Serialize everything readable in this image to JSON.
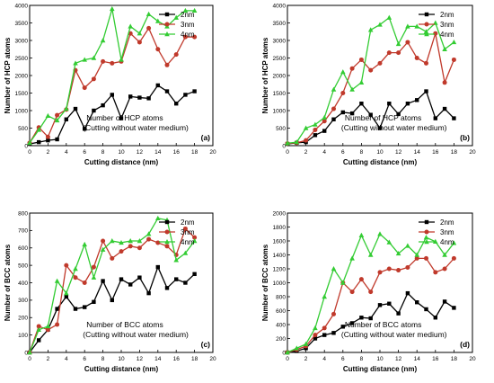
{
  "figure": {
    "legend_symbols": {
      "2nm": "square",
      "3nm": "circle",
      "4nm": "triangle"
    }
  },
  "chart_data": [
    {
      "type": "line",
      "panel_label": "(a)",
      "annotation_line1": "Number of HCP atoms",
      "annotation_line2": "(Cutting without water medium)",
      "xlabel": "Cutting distance (nm)",
      "ylabel": "Number of HCP atoms",
      "xlim": [
        0,
        20
      ],
      "ylim": [
        0,
        4000
      ],
      "xticks": [
        0,
        2,
        4,
        6,
        8,
        10,
        12,
        14,
        16,
        18,
        20
      ],
      "yticks": [
        0,
        500,
        1000,
        1500,
        2000,
        2500,
        3000,
        3500,
        4000
      ],
      "legend_position": "top-right",
      "grid": false,
      "series": [
        {
          "name": "2nm",
          "color": "#000000",
          "x": [
            0,
            1,
            2,
            3,
            4,
            5,
            6,
            7,
            8,
            9,
            10,
            11,
            12,
            13,
            14,
            15,
            16,
            17,
            18
          ],
          "y": [
            50,
            100,
            150,
            180,
            750,
            1050,
            480,
            1000,
            1150,
            1450,
            780,
            1400,
            1370,
            1350,
            1720,
            1550,
            1200,
            1450,
            1550
          ]
        },
        {
          "name": "3nm",
          "color": "#c0392b",
          "x": [
            0,
            1,
            2,
            3,
            4,
            5,
            6,
            7,
            8,
            9,
            10,
            11,
            12,
            13,
            14,
            15,
            16,
            17,
            18
          ],
          "y": [
            80,
            520,
            250,
            870,
            1030,
            2150,
            1650,
            1900,
            2400,
            2350,
            2400,
            3200,
            2950,
            3350,
            2750,
            2300,
            2600,
            3100,
            3100
          ]
        },
        {
          "name": "4nm",
          "color": "#33cc33",
          "x": [
            0,
            1,
            2,
            3,
            4,
            5,
            6,
            7,
            8,
            9,
            10,
            11,
            12,
            13,
            14,
            15,
            16,
            17,
            18
          ],
          "y": [
            80,
            450,
            850,
            720,
            1050,
            2350,
            2450,
            2500,
            3000,
            3900,
            2450,
            3400,
            3200,
            3750,
            3550,
            3400,
            3650,
            3850,
            3850
          ]
        }
      ]
    },
    {
      "type": "line",
      "panel_label": "(b)",
      "annotation_line1": "Number of HCP atoms",
      "annotation_line2": "(Cutting without water medium)",
      "xlabel": "Cutting distance (nm)",
      "ylabel": "Number of HCP atoms",
      "xlim": [
        0,
        20
      ],
      "ylim": [
        0,
        4000
      ],
      "xticks": [
        0,
        2,
        4,
        6,
        8,
        10,
        12,
        14,
        16,
        18,
        20
      ],
      "yticks": [
        0,
        500,
        1000,
        1500,
        2000,
        2500,
        3000,
        3500,
        4000
      ],
      "legend_position": "top-right",
      "grid": false,
      "series": [
        {
          "name": "2nm",
          "color": "#000000",
          "x": [
            0,
            1,
            2,
            3,
            4,
            5,
            6,
            7,
            8,
            9,
            10,
            11,
            12,
            13,
            14,
            15,
            16,
            17,
            18
          ],
          "y": [
            50,
            80,
            100,
            300,
            420,
            750,
            950,
            920,
            1200,
            880,
            500,
            1200,
            900,
            1200,
            1300,
            1550,
            780,
            1050,
            780
          ]
        },
        {
          "name": "3nm",
          "color": "#c0392b",
          "x": [
            0,
            1,
            2,
            3,
            4,
            5,
            6,
            7,
            8,
            9,
            10,
            11,
            12,
            13,
            14,
            15,
            16,
            17,
            18
          ],
          "y": [
            60,
            80,
            150,
            450,
            700,
            1050,
            1500,
            2200,
            2450,
            2150,
            2350,
            2650,
            2650,
            2950,
            2500,
            2350,
            3200,
            1800,
            2450
          ]
        },
        {
          "name": "4nm",
          "color": "#33cc33",
          "x": [
            0,
            1,
            2,
            3,
            4,
            5,
            6,
            7,
            8,
            9,
            10,
            11,
            12,
            13,
            14,
            15,
            16,
            17,
            18
          ],
          "y": [
            70,
            100,
            500,
            600,
            800,
            1600,
            2100,
            1600,
            1800,
            3300,
            3450,
            3650,
            2900,
            3400,
            3400,
            3250,
            3500,
            2750,
            2950
          ]
        }
      ]
    },
    {
      "type": "line",
      "panel_label": "(c)",
      "annotation_line1": "Number of BCC atoms",
      "annotation_line2": "(Cutting without water medium)",
      "xlabel": "Cutting distance (nm)",
      "ylabel": "Number of BCC atoms",
      "xlim": [
        0,
        20
      ],
      "ylim": [
        0,
        800
      ],
      "xticks": [
        0,
        2,
        4,
        6,
        8,
        10,
        12,
        14,
        16,
        18,
        20
      ],
      "yticks": [
        0,
        100,
        200,
        300,
        400,
        500,
        600,
        700,
        800
      ],
      "legend_position": "top-right",
      "grid": false,
      "series": [
        {
          "name": "2nm",
          "color": "#000000",
          "x": [
            0,
            1,
            2,
            3,
            4,
            5,
            6,
            7,
            8,
            9,
            10,
            11,
            12,
            13,
            14,
            15,
            16,
            17,
            18
          ],
          "y": [
            0,
            70,
            130,
            250,
            320,
            250,
            260,
            290,
            410,
            300,
            420,
            390,
            430,
            340,
            490,
            370,
            420,
            400,
            450
          ]
        },
        {
          "name": "3nm",
          "color": "#c0392b",
          "x": [
            0,
            1,
            2,
            3,
            4,
            5,
            6,
            7,
            8,
            9,
            10,
            11,
            12,
            13,
            14,
            15,
            16,
            17,
            18
          ],
          "y": [
            0,
            150,
            130,
            160,
            500,
            430,
            400,
            490,
            640,
            540,
            580,
            610,
            600,
            650,
            630,
            610,
            560,
            710,
            660
          ]
        },
        {
          "name": "4nm",
          "color": "#33cc33",
          "x": [
            0,
            1,
            2,
            3,
            4,
            5,
            6,
            7,
            8,
            9,
            10,
            11,
            12,
            13,
            14,
            15,
            16,
            17,
            18
          ],
          "y": [
            0,
            130,
            150,
            410,
            340,
            480,
            620,
            430,
            590,
            640,
            630,
            640,
            640,
            680,
            770,
            760,
            530,
            570,
            640
          ]
        }
      ]
    },
    {
      "type": "line",
      "panel_label": "(d)",
      "annotation_line1": "Number of BCC atoms",
      "annotation_line2": "(Cutting without water medium)",
      "xlabel": "Cutting distance (nm)",
      "ylabel": "Number of BCC atoms",
      "xlim": [
        0,
        20
      ],
      "ylim": [
        0,
        2000
      ],
      "xticks": [
        0,
        2,
        4,
        6,
        8,
        10,
        12,
        14,
        16,
        18,
        20
      ],
      "yticks": [
        0,
        200,
        400,
        600,
        800,
        1000,
        1200,
        1400,
        1600,
        1800,
        2000
      ],
      "legend_position": "top-right",
      "grid": false,
      "series": [
        {
          "name": "2nm",
          "color": "#000000",
          "x": [
            0,
            1,
            2,
            3,
            4,
            5,
            6,
            7,
            8,
            9,
            10,
            11,
            12,
            13,
            14,
            15,
            16,
            17,
            18
          ],
          "y": [
            0,
            20,
            60,
            200,
            250,
            280,
            370,
            420,
            500,
            490,
            680,
            700,
            560,
            850,
            720,
            620,
            500,
            730,
            640
          ]
        },
        {
          "name": "3nm",
          "color": "#c0392b",
          "x": [
            0,
            1,
            2,
            3,
            4,
            5,
            6,
            7,
            8,
            9,
            10,
            11,
            12,
            13,
            14,
            15,
            16,
            17,
            18
          ],
          "y": [
            0,
            40,
            90,
            250,
            350,
            550,
            1000,
            870,
            1050,
            870,
            1150,
            1200,
            1180,
            1220,
            1350,
            1350,
            1150,
            1200,
            1350
          ]
        },
        {
          "name": "4nm",
          "color": "#33cc33",
          "x": [
            0,
            1,
            2,
            3,
            4,
            5,
            6,
            7,
            8,
            9,
            10,
            11,
            12,
            13,
            14,
            15,
            16,
            17,
            18
          ],
          "y": [
            0,
            60,
            120,
            350,
            800,
            1200,
            1000,
            1350,
            1680,
            1400,
            1700,
            1580,
            1420,
            1530,
            1400,
            1650,
            1590,
            1400,
            1570
          ]
        }
      ]
    }
  ]
}
